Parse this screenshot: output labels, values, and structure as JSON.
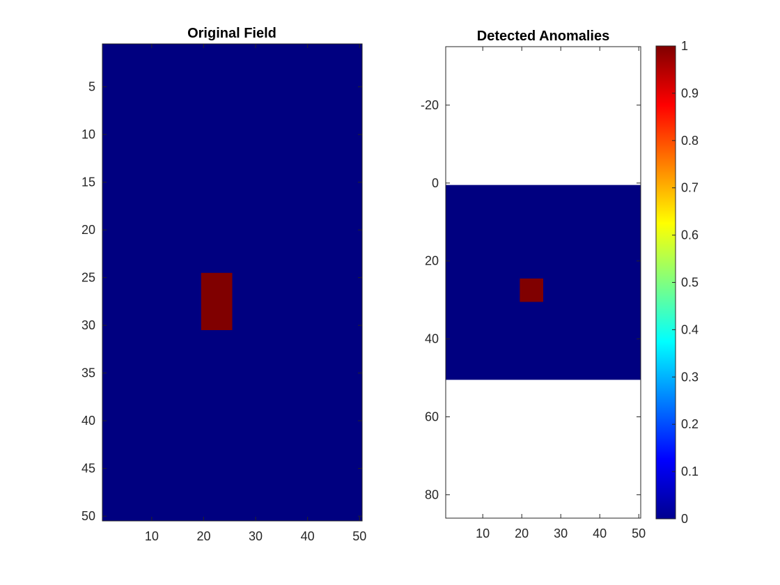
{
  "chart_data": [
    {
      "type": "heatmap",
      "title": "Original Field",
      "xlim": [
        0.5,
        50.5
      ],
      "ylim": [
        0.5,
        50.5
      ],
      "y_reversed": true,
      "xticks": [
        10,
        20,
        30,
        40,
        50
      ],
      "yticks": [
        5,
        10,
        15,
        20,
        25,
        30,
        35,
        40,
        45,
        50
      ],
      "background_value": 0,
      "cells": [
        {
          "label": "anomaly",
          "x": [
            20,
            25
          ],
          "y": [
            25,
            30
          ],
          "value": 1
        }
      ]
    },
    {
      "type": "heatmap",
      "title": "Detected Anomalies",
      "xlim": [
        0.5,
        50.5
      ],
      "ylim": [
        -35,
        86
      ],
      "y_reversed": true,
      "xticks": [
        10,
        20,
        30,
        40,
        50
      ],
      "yticks": [
        -20,
        0,
        20,
        40,
        60,
        80
      ],
      "image_extent": {
        "x": [
          0.5,
          50.5
        ],
        "y": [
          0.5,
          50.5
        ]
      },
      "background_value": 0,
      "cells": [
        {
          "label": "anomaly",
          "x": [
            20,
            25
          ],
          "y": [
            25,
            30
          ],
          "value": 1
        }
      ],
      "colorbar": {
        "colormap": "jet",
        "range": [
          0,
          1
        ],
        "ticks": [
          0,
          0.1,
          0.2,
          0.3,
          0.4,
          0.5,
          0.6,
          0.7,
          0.8,
          0.9,
          1
        ]
      }
    }
  ],
  "colors": {
    "low": "#000080",
    "high": "#800000",
    "axis": "#262626"
  }
}
